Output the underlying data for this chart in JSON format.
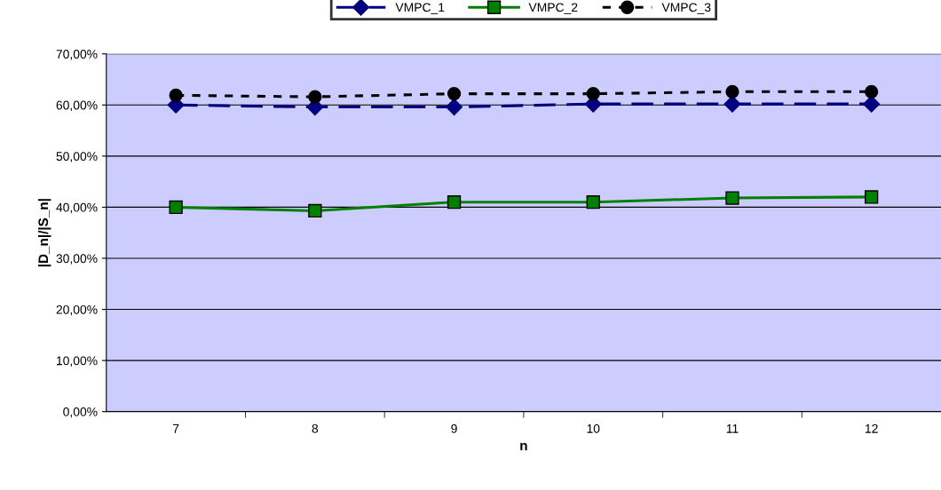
{
  "chart_data": {
    "type": "line",
    "xlabel": "n",
    "ylabel": "|D_n|/|S_n|",
    "categories": [
      "7",
      "8",
      "9",
      "10",
      "11",
      "12"
    ],
    "series": [
      {
        "name": "VMPC_1",
        "color": "#000080",
        "marker": "diamond",
        "line_style": "dashed",
        "values": [
          60.0,
          59.6,
          59.6,
          60.2,
          60.2,
          60.2
        ]
      },
      {
        "name": "VMPC_2",
        "color": "#008000",
        "marker": "square",
        "line_style": "solid",
        "values": [
          40.0,
          39.3,
          41.0,
          41.0,
          41.8,
          42.0
        ]
      },
      {
        "name": "VMPC_3",
        "color": "#000000",
        "marker": "circle",
        "line_style": "dotted",
        "values": [
          61.9,
          61.6,
          62.2,
          62.2,
          62.6,
          62.6
        ]
      }
    ],
    "ylim": [
      0,
      70
    ],
    "yticks": [
      {
        "value": 0,
        "label": "0,00%"
      },
      {
        "value": 10,
        "label": "10,00%"
      },
      {
        "value": 20,
        "label": "20,00%"
      },
      {
        "value": 30,
        "label": "30,00%"
      },
      {
        "value": 40,
        "label": "40,00%"
      },
      {
        "value": 50,
        "label": "50,00%"
      },
      {
        "value": 60,
        "label": "60,00%"
      },
      {
        "value": 70,
        "label": "70,00%"
      }
    ],
    "grid": "y",
    "legend": "top"
  }
}
